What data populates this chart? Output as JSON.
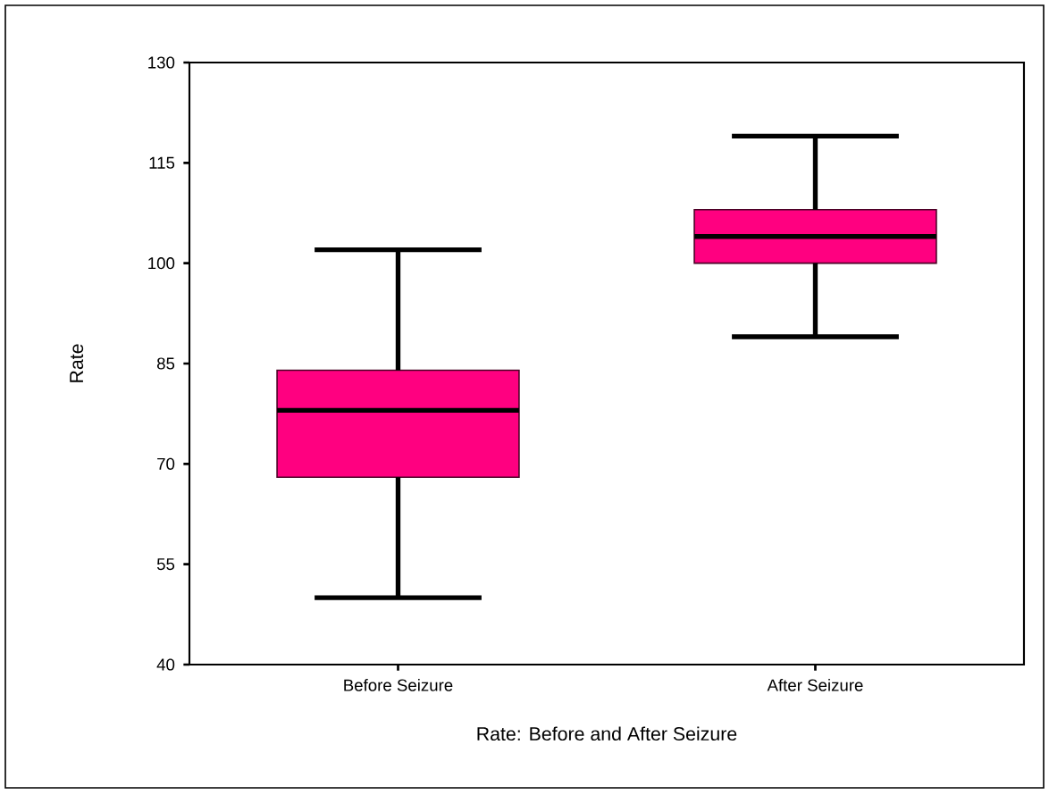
{
  "chart_data": {
    "type": "box",
    "xlabel": "Rate: Before and After Seizure",
    "ylabel": "Rate",
    "categories": [
      "Before Seizure",
      "After Seizure"
    ],
    "boxes": [
      {
        "low": 50,
        "q1": 68,
        "median": 78,
        "q3": 84,
        "high": 102
      },
      {
        "low": 89,
        "q1": 100,
        "median": 104,
        "q3": 108,
        "high": 119
      }
    ],
    "color": "#ff0080",
    "ylim": [
      40,
      130
    ],
    "yticks": [
      40,
      55,
      70,
      85,
      100,
      115,
      130
    ]
  }
}
